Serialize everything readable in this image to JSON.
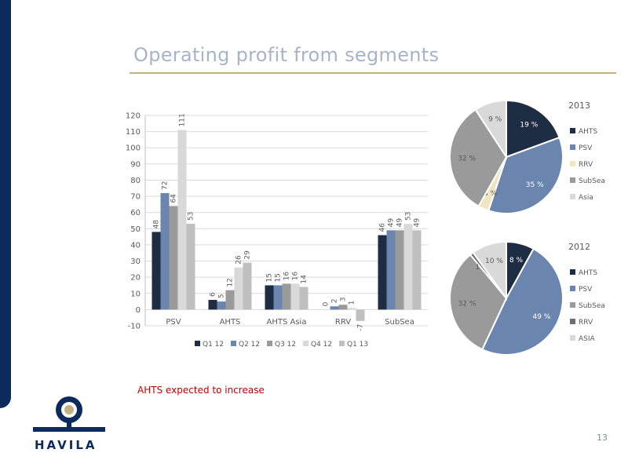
{
  "slide": {
    "title": "Operating profit from segments",
    "note": "AHTS expected to increase",
    "page_number": "13",
    "logo_text": "HAVILA"
  },
  "colors": {
    "brand_navy": "#0d2a5c",
    "title_gray": "#a7b3c8",
    "rule_gold": "#c3b384",
    "note_red": "#c00000",
    "series": [
      "#1f2d44",
      "#6b86ae",
      "#9a9a9a",
      "#d9d9d9",
      "#bfbfbf"
    ]
  },
  "chart_data": [
    {
      "type": "bar",
      "categories": [
        "PSV",
        "AHTS",
        "AHTS Asia",
        "RRV",
        "SubSea"
      ],
      "series": [
        {
          "name": "Q1 12",
          "values": [
            48,
            6,
            15,
            0,
            46
          ]
        },
        {
          "name": "Q2 12",
          "values": [
            72,
            5,
            15,
            2,
            49
          ]
        },
        {
          "name": "Q3 12",
          "values": [
            64,
            12,
            16,
            3,
            49
          ]
        },
        {
          "name": "Q4 12",
          "values": [
            111,
            26,
            16,
            1,
            53
          ]
        },
        {
          "name": "Q1 13",
          "values": [
            53,
            29,
            14,
            -7,
            49
          ]
        }
      ],
      "ylim": [
        -10,
        120
      ],
      "yticks": [
        -10,
        0,
        10,
        20,
        30,
        40,
        50,
        60,
        70,
        80,
        90,
        100,
        110,
        120
      ],
      "grid": true,
      "legend": "bottom"
    },
    {
      "type": "pie",
      "title": "2013",
      "slices": [
        {
          "label": "AHTS",
          "value": 19,
          "text": "19 %",
          "color": "#1f2d44"
        },
        {
          "label": "PSV",
          "value": 35,
          "text": "35 %",
          "color": "#6b86ae"
        },
        {
          "label": "RRV",
          "value": 3,
          "text": "3 %",
          "color": "#efe5c0"
        },
        {
          "label": "SubSea",
          "value": 32,
          "text": "32 %",
          "color": "#9a9a9a"
        },
        {
          "label": "Asia",
          "value": 9,
          "text": "9 %",
          "color": "#d9d9d9"
        }
      ],
      "legend": "right"
    },
    {
      "type": "pie",
      "title": "2012",
      "slices": [
        {
          "label": "AHTS",
          "value": 8,
          "text": "8 %",
          "color": "#1f2d44"
        },
        {
          "label": "PSV",
          "value": 49,
          "text": "49 %",
          "color": "#6b86ae"
        },
        {
          "label": "SubSea",
          "value": 32,
          "text": "32 %",
          "color": "#9a9a9a"
        },
        {
          "label": "RRV",
          "value": 1,
          "text": "1 %",
          "color": "#6e6e6e"
        },
        {
          "label": "ASIA",
          "value": 10,
          "text": "10 %",
          "color": "#d9d9d9"
        }
      ],
      "legend": "right"
    }
  ]
}
